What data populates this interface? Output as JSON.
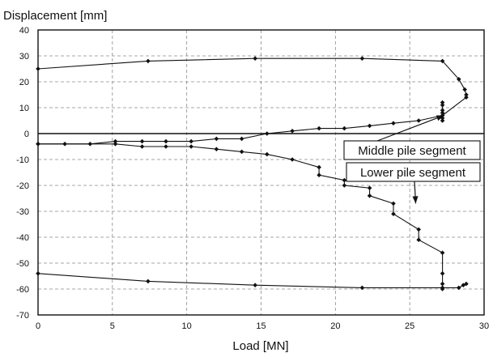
{
  "chart_data": {
    "type": "line",
    "title": "",
    "xlabel": "Load [MN]",
    "ylabel": "Displacement [mm]",
    "xlim": [
      0,
      30
    ],
    "ylim": [
      -70,
      40
    ],
    "xticks": [
      0,
      5,
      10,
      15,
      20,
      25,
      30
    ],
    "yticks": [
      40,
      30,
      20,
      10,
      0,
      -10,
      -20,
      -30,
      -40,
      -50,
      -60,
      -70
    ],
    "grid": true,
    "grid_style": "dashed",
    "colors": {
      "line": "#111111",
      "grid": "#8a8a8a",
      "annotation_box": "#111111"
    },
    "series": [
      {
        "curve": "middle-upper",
        "points": [
          [
            0,
            25
          ],
          [
            7.4,
            28
          ],
          [
            14.6,
            29
          ],
          [
            21.8,
            29
          ],
          [
            27.2,
            28
          ],
          [
            28.3,
            21
          ],
          [
            28.7,
            17
          ],
          [
            28.8,
            15
          ]
        ]
      },
      {
        "curve": "middle-loading",
        "points": [
          [
            0,
            -4
          ],
          [
            1.8,
            -4
          ],
          [
            3.5,
            -4
          ],
          [
            5.2,
            -3
          ],
          [
            7,
            -3
          ],
          [
            8.6,
            -3
          ],
          [
            10.3,
            -3
          ],
          [
            12,
            -2
          ],
          [
            13.7,
            -2
          ],
          [
            15.4,
            0
          ],
          [
            17.1,
            1
          ],
          [
            18.9,
            2
          ],
          [
            20.6,
            2
          ],
          [
            22.3,
            3
          ],
          [
            23.9,
            4
          ],
          [
            25.6,
            5
          ],
          [
            27.2,
            7
          ],
          [
            28.8,
            14
          ]
        ]
      },
      {
        "curve": "middle-unloading-drop",
        "points": [
          [
            27.2,
            5
          ],
          [
            27.2,
            6
          ],
          [
            27.2,
            8
          ],
          [
            27.2,
            9
          ],
          [
            27.2,
            11
          ],
          [
            27.2,
            12
          ]
        ]
      },
      {
        "curve": "lower-loading",
        "points": [
          [
            0,
            -4
          ],
          [
            5.2,
            -4
          ],
          [
            7,
            -5
          ],
          [
            8.6,
            -5
          ],
          [
            10.3,
            -5
          ],
          [
            12,
            -6
          ],
          [
            13.7,
            -7
          ],
          [
            15.4,
            -8
          ],
          [
            17.1,
            -10
          ],
          [
            18.9,
            -13
          ],
          [
            18.9,
            -16
          ],
          [
            20.6,
            -18
          ],
          [
            20.6,
            -20
          ],
          [
            22.3,
            -21
          ],
          [
            22.3,
            -24
          ],
          [
            23.9,
            -27
          ],
          [
            23.9,
            -31
          ],
          [
            25.6,
            -37
          ],
          [
            25.6,
            -41
          ],
          [
            27.2,
            -46
          ],
          [
            27.2,
            -54
          ],
          [
            27.2,
            -58
          ],
          [
            27.2,
            -60
          ]
        ]
      },
      {
        "curve": "lower-unloading",
        "points": [
          [
            0,
            -54
          ],
          [
            7.4,
            -57
          ],
          [
            14.6,
            -58.5
          ],
          [
            21.8,
            -59.5
          ],
          [
            27.2,
            -59.5
          ],
          [
            28.3,
            -59.5
          ],
          [
            28.6,
            -58.5
          ],
          [
            28.8,
            -58
          ]
        ]
      }
    ],
    "annotations": [
      {
        "text": "Middle pile segment",
        "arrow_to": [
          27.3,
          7
        ]
      },
      {
        "text": "Lower pile segment",
        "arrow_to": [
          25.4,
          -27
        ]
      }
    ]
  }
}
